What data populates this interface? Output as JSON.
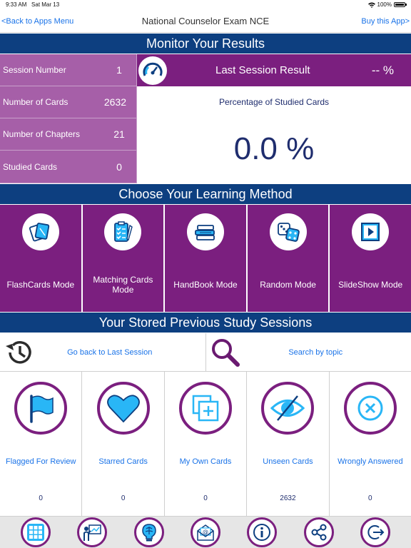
{
  "status": {
    "time": "9:33 AM",
    "date": "Sat Mar 13",
    "battery": "100%"
  },
  "nav": {
    "back": "<Back to Apps Menu",
    "title": "National Counselor Exam NCE",
    "buy": "Buy this App>"
  },
  "monitor": {
    "header": "Monitor Your Results",
    "stats": [
      {
        "label": "Session Number",
        "value": "1"
      },
      {
        "label": "Number of Cards",
        "value": "2632"
      },
      {
        "label": "Number of Chapters",
        "value": "21"
      },
      {
        "label": "Studied Cards",
        "value": "0"
      }
    ],
    "last_session_label": "Last Session Result",
    "last_session_value": "-- %",
    "studied_pct_label": "Percentage of Studied Cards",
    "studied_pct_value": "0.0 %"
  },
  "methods": {
    "header": "Choose Your Learning Method",
    "items": [
      {
        "label": "FlashCards Mode",
        "icon": "flashcards-icon"
      },
      {
        "label": "Matching Cards Mode",
        "icon": "clipboard-checklist-icon"
      },
      {
        "label": "HandBook Mode",
        "icon": "books-icon"
      },
      {
        "label": "Random Mode",
        "icon": "dice-icon"
      },
      {
        "label": "SlideShow Mode",
        "icon": "play-icon"
      }
    ]
  },
  "stored": {
    "header": "Your Stored Previous Study Sessions",
    "go_back": "Go back to Last Session",
    "search": "Search by topic",
    "items": [
      {
        "label": "Flagged For Review",
        "count": "0",
        "icon": "flag-icon"
      },
      {
        "label": "Starred Cards",
        "count": "0",
        "icon": "heart-icon"
      },
      {
        "label": "My Own Cards",
        "count": "0",
        "icon": "add-card-icon"
      },
      {
        "label": "Unseen Cards",
        "count": "2632",
        "icon": "eye-slash-icon"
      },
      {
        "label": "Wrongly Answered",
        "count": "0",
        "icon": "x-circle-icon"
      }
    ]
  },
  "tabbar": [
    "grid-icon",
    "presentation-icon",
    "brain-bulb-icon",
    "email-icon",
    "info-icon",
    "share-icon",
    "exit-icon"
  ],
  "colors": {
    "navy": "#0d3f80",
    "purple": "#7b1f7f",
    "light_purple": "#a65fa8",
    "cyan": "#29b6f6",
    "link": "#1a73e8"
  }
}
